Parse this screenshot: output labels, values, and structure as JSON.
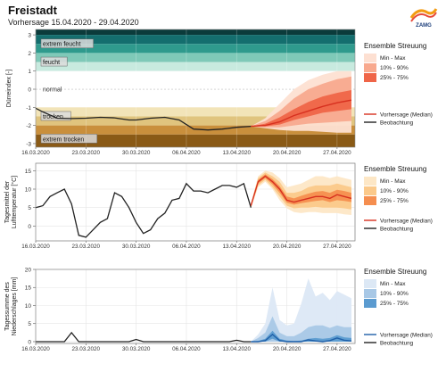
{
  "header": {
    "station": "Freistadt",
    "subtitle": "Vorhersage 15.04.2020 - 29.04.2020",
    "logo_text": "ZAMG"
  },
  "colors": {
    "drought_bands": [
      "#0b3b3b",
      "#146e6e",
      "#2f9a8d",
      "#7fc9b8",
      "#c8eadf",
      "#ffffff",
      "#f2e4b8",
      "#e0c47e",
      "#c98f3c",
      "#8a5a16"
    ],
    "observation": "#222222",
    "forecast_median": "#d7301f",
    "red_minmax": "#fde0d2",
    "red_10_90": "#f8a98e",
    "red_25_75": "#ef6548",
    "orange_minmax": "#fde7c6",
    "orange_10_90": "#fbc98a",
    "orange_25_75": "#f58e4f",
    "blue_minmax": "#dce8f5",
    "blue_10_90": "#a8c8e6",
    "blue_25_75": "#5b9bd0",
    "blue_median": "#1f5fa8"
  },
  "x_tick_labels": [
    "16.03.2020",
    "23.03.2020",
    "30.03.2020",
    "06.04.2020",
    "13.04.2020",
    "20.04.2020",
    "27.04.2020"
  ],
  "chart_data": [
    {
      "type": "line",
      "ylabel": "Dürreindex [-]",
      "ylim": [
        -3.2,
        3.3
      ],
      "yticks": [
        -3,
        -2,
        -1,
        0,
        1,
        2,
        3
      ],
      "category_labels": [
        "extrem feucht",
        "feucht",
        "normal",
        "trocken",
        "extrem trocken"
      ],
      "legend": {
        "title": "Ensemble Streuung",
        "items": [
          "Min - Max",
          "10% - 90%",
          "25% - 75%"
        ],
        "lines": [
          "Vorhersage (Median)",
          "Beobachtung"
        ]
      },
      "observation": {
        "x": [
          "2020-03-16",
          "2020-03-17",
          "2020-03-19",
          "2020-03-21",
          "2020-03-23",
          "2020-03-25",
          "2020-03-27",
          "2020-03-29",
          "2020-03-30",
          "2020-04-01",
          "2020-04-03",
          "2020-04-05",
          "2020-04-07",
          "2020-04-09",
          "2020-04-11",
          "2020-04-13",
          "2020-04-15"
        ],
        "y": [
          -1.05,
          -1.25,
          -1.6,
          -1.62,
          -1.6,
          -1.55,
          -1.58,
          -1.7,
          -1.7,
          -1.6,
          -1.55,
          -1.7,
          -2.2,
          -2.25,
          -2.2,
          -2.1,
          -2.05
        ]
      },
      "forecast": {
        "x": [
          "2020-04-15",
          "2020-04-17",
          "2020-04-19",
          "2020-04-21",
          "2020-04-23",
          "2020-04-25",
          "2020-04-27",
          "2020-04-29"
        ],
        "median": [
          -2.05,
          -2.0,
          -1.8,
          -1.45,
          -1.2,
          -0.95,
          -0.75,
          -0.6
        ],
        "p25": [
          -2.05,
          -2.05,
          -1.95,
          -1.7,
          -1.5,
          -1.3,
          -1.2,
          -1.1
        ],
        "p75": [
          -2.05,
          -1.9,
          -1.55,
          -1.1,
          -0.7,
          -0.4,
          -0.2,
          -0.05
        ],
        "p10": [
          -2.05,
          -2.1,
          -2.1,
          -2.0,
          -1.9,
          -1.85,
          -1.8,
          -1.75
        ],
        "p90": [
          -2.05,
          -1.75,
          -1.2,
          -0.5,
          0.0,
          0.3,
          0.55,
          0.7
        ],
        "min": [
          -2.05,
          -2.15,
          -2.25,
          -2.3,
          -2.3,
          -2.35,
          -2.4,
          -2.4
        ],
        "max": [
          -2.05,
          -1.6,
          -0.8,
          0.0,
          0.5,
          0.8,
          1.0,
          1.0
        ]
      }
    },
    {
      "type": "line",
      "ylabel": "Tagesmittel der Lufttemperatur [°C]",
      "ylim": [
        -4,
        17
      ],
      "yticks": [
        0,
        5,
        10,
        15
      ],
      "legend": {
        "title": "Ensemble Streuung",
        "items": [
          "Min - Max",
          "10% - 90%",
          "25% - 75%"
        ],
        "lines": [
          "Vorhersage (Median)",
          "Beobachtung"
        ]
      },
      "observation": {
        "x": [
          "2020-03-16",
          "2020-03-17",
          "2020-03-18",
          "2020-03-19",
          "2020-03-20",
          "2020-03-21",
          "2020-03-22",
          "2020-03-23",
          "2020-03-24",
          "2020-03-25",
          "2020-03-26",
          "2020-03-27",
          "2020-03-28",
          "2020-03-29",
          "2020-03-30",
          "2020-03-31",
          "2020-04-01",
          "2020-04-02",
          "2020-04-03",
          "2020-04-04",
          "2020-04-05",
          "2020-04-06",
          "2020-04-07",
          "2020-04-08",
          "2020-04-09",
          "2020-04-10",
          "2020-04-11",
          "2020-04-12",
          "2020-04-13",
          "2020-04-14",
          "2020-04-15"
        ],
        "y": [
          5.0,
          5.5,
          8.0,
          9.0,
          10.0,
          6.0,
          -2.5,
          -3.0,
          -1.0,
          1.0,
          2.0,
          9.0,
          8.0,
          5.0,
          1.0,
          -2.0,
          -1.0,
          2.0,
          3.5,
          7.0,
          7.5,
          11.5,
          9.5,
          9.5,
          9.0,
          10.0,
          11.0,
          11.0,
          10.5,
          11.5,
          5.0
        ]
      },
      "forecast": {
        "x": [
          "2020-04-15",
          "2020-04-16",
          "2020-04-17",
          "2020-04-18",
          "2020-04-19",
          "2020-04-20",
          "2020-04-21",
          "2020-04-22",
          "2020-04-23",
          "2020-04-24",
          "2020-04-25",
          "2020-04-26",
          "2020-04-27",
          "2020-04-28",
          "2020-04-29"
        ],
        "median": [
          5.5,
          12.0,
          13.5,
          12.0,
          10.0,
          7.0,
          6.5,
          7.0,
          7.5,
          8.0,
          8.0,
          7.5,
          8.5,
          8.0,
          7.5
        ],
        "p25": [
          5.3,
          11.5,
          13.0,
          11.3,
          9.0,
          6.3,
          5.8,
          6.2,
          6.5,
          6.8,
          7.0,
          6.5,
          7.0,
          6.8,
          6.5
        ],
        "p75": [
          5.8,
          12.5,
          14.0,
          12.7,
          10.8,
          8.0,
          7.5,
          8.2,
          8.8,
          9.3,
          9.5,
          9.0,
          9.8,
          9.5,
          9.0
        ],
        "p10": [
          5.0,
          11.0,
          12.5,
          10.5,
          8.0,
          5.5,
          4.8,
          5.0,
          5.0,
          5.2,
          5.0,
          5.0,
          5.0,
          4.8,
          4.5
        ],
        "p90": [
          6.0,
          13.0,
          14.5,
          13.5,
          12.0,
          9.0,
          9.0,
          9.5,
          10.5,
          11.0,
          11.0,
          11.0,
          11.5,
          11.0,
          10.5
        ],
        "min": [
          4.8,
          10.5,
          12.0,
          10.0,
          7.0,
          4.8,
          3.8,
          3.5,
          3.8,
          3.8,
          3.5,
          3.5,
          3.5,
          3.2,
          3.0
        ],
        "max": [
          6.2,
          13.5,
          15.0,
          14.5,
          13.0,
          10.5,
          11.0,
          11.5,
          12.5,
          13.5,
          13.5,
          13.0,
          13.5,
          13.0,
          12.5
        ]
      }
    },
    {
      "type": "area",
      "ylabel": "Tagessumme des Niederschlages [mm]",
      "ylim": [
        -0.5,
        20
      ],
      "yticks": [
        0,
        5,
        10,
        15,
        20
      ],
      "legend": {
        "title": "Ensemble Streuung",
        "items": [
          "Min - Max",
          "10% - 90%",
          "25% - 75%"
        ],
        "lines": [
          "Vorhersage (Median)",
          "Beobachtung"
        ]
      },
      "observation": {
        "x": [
          "2020-03-16",
          "2020-03-19",
          "2020-03-20",
          "2020-03-21",
          "2020-03-22",
          "2020-03-23",
          "2020-03-29",
          "2020-03-30",
          "2020-03-31",
          "2020-04-01",
          "2020-04-12",
          "2020-04-13",
          "2020-04-14",
          "2020-04-15"
        ],
        "y": [
          0,
          0,
          0,
          2.5,
          0,
          0,
          0,
          0.6,
          0,
          0,
          0,
          0.4,
          0,
          0
        ]
      },
      "forecast": {
        "x": [
          "2020-04-15",
          "2020-04-16",
          "2020-04-17",
          "2020-04-18",
          "2020-04-19",
          "2020-04-20",
          "2020-04-21",
          "2020-04-22",
          "2020-04-23",
          "2020-04-24",
          "2020-04-25",
          "2020-04-26",
          "2020-04-27",
          "2020-04-28",
          "2020-04-29"
        ],
        "median": [
          0,
          0,
          0.3,
          2.0,
          0.3,
          0,
          0,
          0,
          0.5,
          0.2,
          0,
          0.3,
          1.0,
          0.4,
          0.2
        ],
        "p25": [
          0,
          0,
          0,
          0.8,
          0,
          0,
          0,
          0,
          0,
          0,
          0,
          0,
          0,
          0,
          0
        ],
        "p75": [
          0,
          0.2,
          0.8,
          3.0,
          0.8,
          0.3,
          0.2,
          0.3,
          0.8,
          1.0,
          0.8,
          1.0,
          1.8,
          1.2,
          1.0
        ],
        "p10": [
          0,
          0,
          0,
          0,
          0,
          0,
          0,
          0,
          0,
          0,
          0,
          0,
          0,
          0,
          0
        ],
        "p90": [
          0,
          1.0,
          2.5,
          7.0,
          2.5,
          1.5,
          1.5,
          2.5,
          4.0,
          4.5,
          4.5,
          3.8,
          4.5,
          4.0,
          4.0
        ],
        "min": [
          0,
          0,
          0,
          0,
          0,
          0,
          0,
          0,
          0,
          0,
          0,
          0,
          0,
          0,
          0
        ],
        "max": [
          0,
          2.0,
          5.0,
          15.0,
          6.0,
          4.5,
          5.0,
          10.5,
          17.5,
          12.5,
          13.5,
          11.5,
          14.0,
          13.0,
          12.0
        ]
      }
    }
  ]
}
